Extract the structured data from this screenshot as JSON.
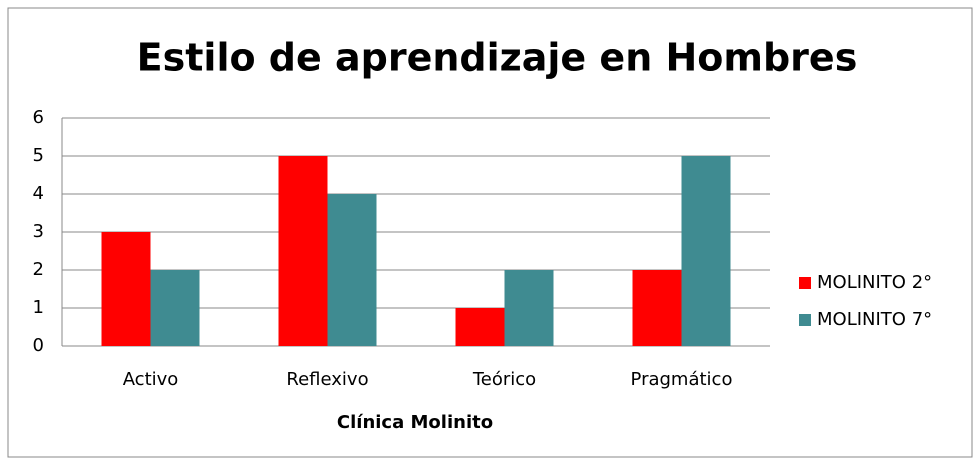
{
  "chart_data": {
    "type": "bar",
    "title": "Estilo de aprendizaje en Hombres",
    "x_label": "Clínica Molinito",
    "categories": [
      "Activo",
      "Reflexivo",
      "Teórico",
      "Pragmático"
    ],
    "series": [
      {
        "name": "MOLINITO 2°",
        "color": "#ff0000",
        "values": [
          3,
          5,
          1,
          2
        ]
      },
      {
        "name": "MOLINITO 7°",
        "color": "#3f8b91",
        "values": [
          2,
          4,
          2,
          5
        ]
      }
    ],
    "ylim": [
      0,
      6
    ],
    "yticks": [
      0,
      1,
      2,
      3,
      4,
      5,
      6
    ],
    "grid": true,
    "legend": "right"
  }
}
